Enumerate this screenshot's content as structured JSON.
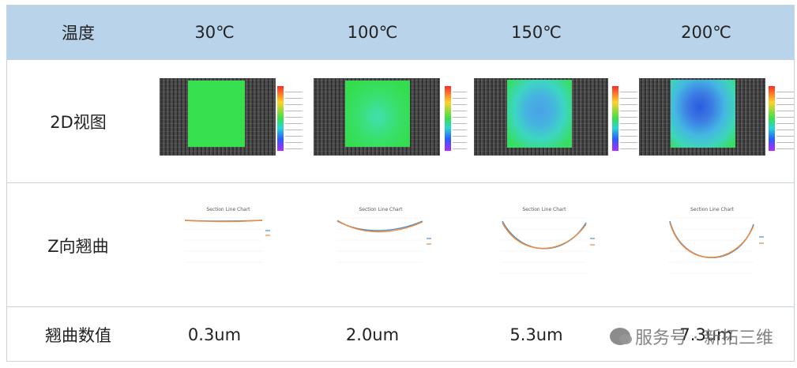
{
  "header": {
    "col0": "温度",
    "temps": [
      "30℃",
      "100℃",
      "150℃",
      "200℃"
    ]
  },
  "rows": {
    "view2d": "2D视图",
    "warp": "Z向翘曲",
    "value": "翘曲数值"
  },
  "values": [
    "0.3um",
    "2.0um",
    "5.3um",
    "7.3um"
  ],
  "chart_title": "Section Line Chart",
  "watermark": "服务号 · 新拓三维",
  "colors": {
    "header_bg": "#b8d3ea",
    "grid": "#c9d3dc",
    "series_a": "#4a8fd0",
    "series_b": "#ee8a3a"
  }
}
